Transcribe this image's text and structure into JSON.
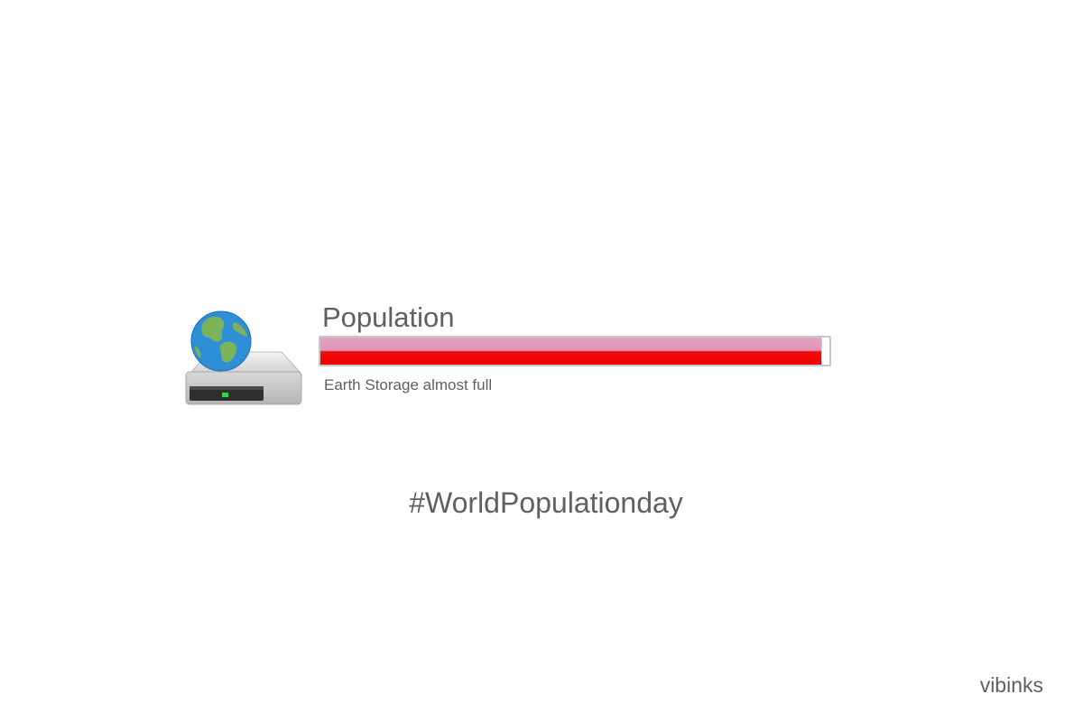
{
  "drive": {
    "name": "Population",
    "status": "Earth Storage almost full",
    "usage_fraction": 0.985,
    "fill_color": "#f20000",
    "icon": "globe-hard-drive-icon"
  },
  "caption": {
    "hashtag": "#WorldPopulationday"
  },
  "watermark": "vibinks"
}
